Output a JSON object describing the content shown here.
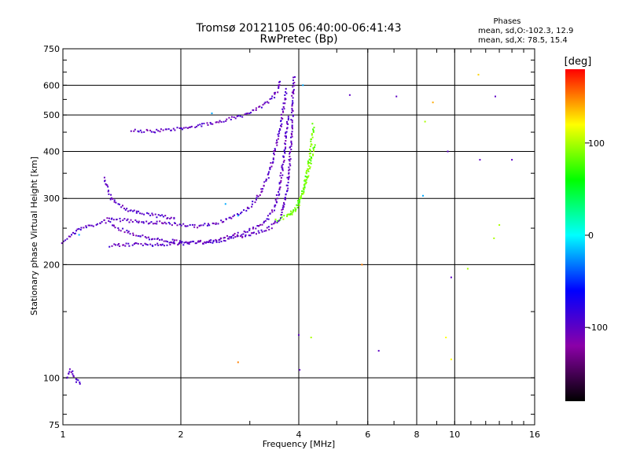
{
  "chart_data": {
    "type": "scatter",
    "title": "Tromsø 20121105 06:40:00-06:41:43",
    "subtitle": "RwPretec (Bp)",
    "xlabel": "Frequency [MHz]",
    "ylabel": "Stationary phase Virtual Height [km]",
    "xscale": "log",
    "yscale": "log",
    "xlim": [
      1,
      16
    ],
    "ylim": [
      75,
      750
    ],
    "xticks": [
      1,
      2,
      4,
      8,
      16
    ],
    "xtick_labels": [
      "1",
      "2",
      "4",
      "8",
      "16"
    ],
    "x_gridlines": [
      2,
      4,
      6,
      8,
      10
    ],
    "x_extra_labels": [
      "6",
      "10"
    ],
    "yticks": [
      75,
      100,
      200,
      300,
      400,
      500,
      600,
      750
    ],
    "ytick_labels": [
      "75",
      "100",
      "200",
      "300",
      "400",
      "500",
      "600",
      "750"
    ],
    "grid": true,
    "phases_info": {
      "heading": "Phases",
      "line1": "mean, sd,O:-102.3, 12.9",
      "line2": "mean, sd,X:  78.5, 15.4"
    },
    "colorbar": {
      "label": "[deg]",
      "range": [
        -180,
        180
      ],
      "ticks": [
        100,
        0,
        -100
      ],
      "tick_labels": [
        "100",
        "0",
        "-100"
      ],
      "colors": [
        "#000000",
        "#8b00a8",
        "#0000ff",
        "#00ffff",
        "#00ff00",
        "#ffff00",
        "#ff0000"
      ]
    },
    "traces": [
      {
        "phase": -100,
        "points": [
          [
            1.0,
            230
          ],
          [
            1.05,
            240
          ],
          [
            1.1,
            248
          ],
          [
            1.15,
            252
          ],
          [
            1.2,
            255
          ],
          [
            1.25,
            258
          ],
          [
            1.28,
            262
          ],
          [
            1.32,
            258
          ],
          [
            1.38,
            250
          ],
          [
            1.45,
            245
          ],
          [
            1.55,
            240
          ],
          [
            1.65,
            236
          ],
          [
            1.8,
            232
          ],
          [
            2.0,
            230
          ],
          [
            2.2,
            228
          ],
          [
            2.4,
            230
          ],
          [
            2.6,
            233
          ],
          [
            2.8,
            236
          ],
          [
            3.0,
            240
          ],
          [
            3.2,
            245
          ],
          [
            3.4,
            252
          ],
          [
            3.55,
            262
          ],
          [
            3.65,
            280
          ],
          [
            3.72,
            310
          ],
          [
            3.78,
            360
          ],
          [
            3.82,
            420
          ],
          [
            3.85,
            500
          ],
          [
            3.86,
            560
          ],
          [
            3.88,
            600
          ],
          [
            3.9,
            640
          ]
        ]
      },
      {
        "phase": -100,
        "points": [
          [
            1.32,
            225
          ],
          [
            1.5,
            226
          ],
          [
            1.7,
            226
          ],
          [
            1.9,
            227
          ],
          [
            2.1,
            228
          ],
          [
            2.3,
            230
          ],
          [
            2.6,
            236
          ],
          [
            2.9,
            243
          ],
          [
            3.1,
            250
          ],
          [
            3.3,
            262
          ],
          [
            3.45,
            280
          ],
          [
            3.55,
            310
          ],
          [
            3.62,
            350
          ],
          [
            3.68,
            400
          ],
          [
            3.72,
            450
          ],
          [
            3.76,
            500
          ]
        ]
      },
      {
        "phase": -100,
        "points": [
          [
            1.3,
            265
          ],
          [
            1.45,
            262
          ],
          [
            1.6,
            260
          ],
          [
            1.8,
            258
          ],
          [
            2.0,
            255
          ],
          [
            2.2,
            253
          ],
          [
            2.4,
            256
          ],
          [
            2.6,
            262
          ],
          [
            2.8,
            272
          ],
          [
            3.0,
            285
          ],
          [
            3.2,
            310
          ],
          [
            3.35,
            345
          ],
          [
            3.45,
            390
          ],
          [
            3.55,
            440
          ],
          [
            3.62,
            490
          ],
          [
            3.68,
            540
          ],
          [
            3.72,
            590
          ]
        ]
      },
      {
        "phase": -100,
        "points": [
          [
            1.27,
            340
          ],
          [
            1.3,
            320
          ],
          [
            1.33,
            300
          ],
          [
            1.38,
            290
          ],
          [
            1.45,
            280
          ],
          [
            1.55,
            275
          ],
          [
            1.65,
            272
          ],
          [
            1.8,
            268
          ],
          [
            1.95,
            265
          ]
        ]
      },
      {
        "phase": -100,
        "points": [
          [
            1.5,
            455
          ],
          [
            1.7,
            452
          ],
          [
            1.9,
            458
          ],
          [
            2.1,
            465
          ],
          [
            2.3,
            472
          ],
          [
            2.5,
            480
          ],
          [
            2.7,
            490
          ],
          [
            2.9,
            500
          ],
          [
            3.1,
            515
          ],
          [
            3.3,
            535
          ],
          [
            3.45,
            560
          ],
          [
            3.55,
            590
          ],
          [
            3.6,
            620
          ]
        ]
      },
      {
        "phase": 85,
        "points": [
          [
            3.5,
            262
          ],
          [
            3.65,
            266
          ],
          [
            3.8,
            272
          ],
          [
            3.95,
            282
          ],
          [
            4.05,
            298
          ],
          [
            4.12,
            318
          ],
          [
            4.18,
            345
          ],
          [
            4.25,
            375
          ],
          [
            4.3,
            410
          ],
          [
            4.34,
            450
          ],
          [
            4.36,
            475
          ]
        ]
      },
      {
        "phase": 85,
        "points": [
          [
            3.75,
            270
          ],
          [
            3.9,
            280
          ],
          [
            4.0,
            295
          ],
          [
            4.1,
            315
          ],
          [
            4.2,
            340
          ],
          [
            4.28,
            370
          ],
          [
            4.35,
            400
          ],
          [
            4.42,
            420
          ]
        ]
      },
      {
        "phase": -100,
        "points": [
          [
            1.02,
            100
          ],
          [
            1.04,
            105
          ],
          [
            1.06,
            103
          ],
          [
            1.08,
            99
          ],
          [
            1.1,
            97
          ],
          [
            1.12,
            96
          ]
        ]
      }
    ],
    "isolated_points": [
      {
        "x": 5.4,
        "y": 565,
        "phase": -100
      },
      {
        "x": 7.1,
        "y": 560,
        "phase": -100
      },
      {
        "x": 8.8,
        "y": 540,
        "phase": 140
      },
      {
        "x": 8.4,
        "y": 480,
        "phase": 100
      },
      {
        "x": 9.6,
        "y": 400,
        "phase": -100
      },
      {
        "x": 11.5,
        "y": 640,
        "phase": 130
      },
      {
        "x": 12.7,
        "y": 560,
        "phase": -100
      },
      {
        "x": 11.6,
        "y": 380,
        "phase": -100
      },
      {
        "x": 14.0,
        "y": 380,
        "phase": -100
      },
      {
        "x": 8.3,
        "y": 305,
        "phase": -20
      },
      {
        "x": 13.0,
        "y": 255,
        "phase": 100
      },
      {
        "x": 12.6,
        "y": 235,
        "phase": 100
      },
      {
        "x": 5.8,
        "y": 200,
        "phase": 150
      },
      {
        "x": 9.8,
        "y": 185,
        "phase": -100
      },
      {
        "x": 10.8,
        "y": 195,
        "phase": 100
      },
      {
        "x": 4.0,
        "y": 130,
        "phase": -100
      },
      {
        "x": 4.3,
        "y": 128,
        "phase": 100
      },
      {
        "x": 6.4,
        "y": 118,
        "phase": -100
      },
      {
        "x": 9.5,
        "y": 128,
        "phase": 120
      },
      {
        "x": 9.8,
        "y": 112,
        "phase": 120
      },
      {
        "x": 2.8,
        "y": 110,
        "phase": 150
      },
      {
        "x": 4.02,
        "y": 105,
        "phase": -100
      },
      {
        "x": 4.1,
        "y": 600,
        "phase": -20
      },
      {
        "x": 2.4,
        "y": 505,
        "phase": -20
      },
      {
        "x": 2.6,
        "y": 290,
        "phase": -20
      },
      {
        "x": 2.8,
        "y": 270,
        "phase": -20
      },
      {
        "x": 1.1,
        "y": 240,
        "phase": -20
      }
    ]
  }
}
